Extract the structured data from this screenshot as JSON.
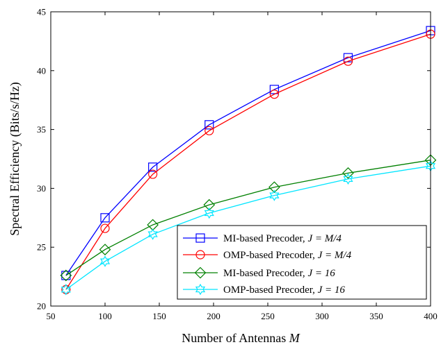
{
  "chart_data": {
    "type": "line",
    "xlabel": "Number of Antennas ",
    "xlabel_var": "M",
    "ylabel": "Spectral Efficiency (Bits/s/Hz)",
    "xlim": [
      50,
      400
    ],
    "ylim": [
      20,
      45
    ],
    "xticks": [
      50,
      100,
      150,
      200,
      250,
      300,
      350,
      400
    ],
    "yticks": [
      20,
      25,
      30,
      35,
      40,
      45
    ],
    "grid": false,
    "legend_position": "lower-right",
    "x": [
      64,
      100,
      144,
      196,
      256,
      324,
      400
    ],
    "series": [
      {
        "name": "MI-based Precoder, J = M/4",
        "label_prefix": "MI-based Precoder, ",
        "label_math": "J = M/4",
        "color": "#0000ff",
        "marker": "square",
        "values": [
          22.6,
          27.5,
          31.8,
          35.4,
          38.4,
          41.1,
          43.4
        ]
      },
      {
        "name": "OMP-based Precoder, J = M/4",
        "label_prefix": "OMP-based Precoder, ",
        "label_math": "J = M/4",
        "color": "#ff0000",
        "marker": "circle",
        "values": [
          21.4,
          26.6,
          31.2,
          34.9,
          38.0,
          40.8,
          43.1
        ]
      },
      {
        "name": "MI-based Precoder, J = 16",
        "label_prefix": "MI-based Precoder, ",
        "label_math": "J = 16",
        "color": "#008000",
        "marker": "diamond",
        "values": [
          22.6,
          24.8,
          26.9,
          28.6,
          30.1,
          31.3,
          32.4
        ]
      },
      {
        "name": "OMP-based Precoder, J = 16",
        "label_prefix": "OMP-based Precoder, ",
        "label_math": "J = 16",
        "color": "#00e5ff",
        "marker": "hexagram",
        "values": [
          21.4,
          23.8,
          26.1,
          27.9,
          29.4,
          30.8,
          31.9
        ]
      }
    ]
  }
}
